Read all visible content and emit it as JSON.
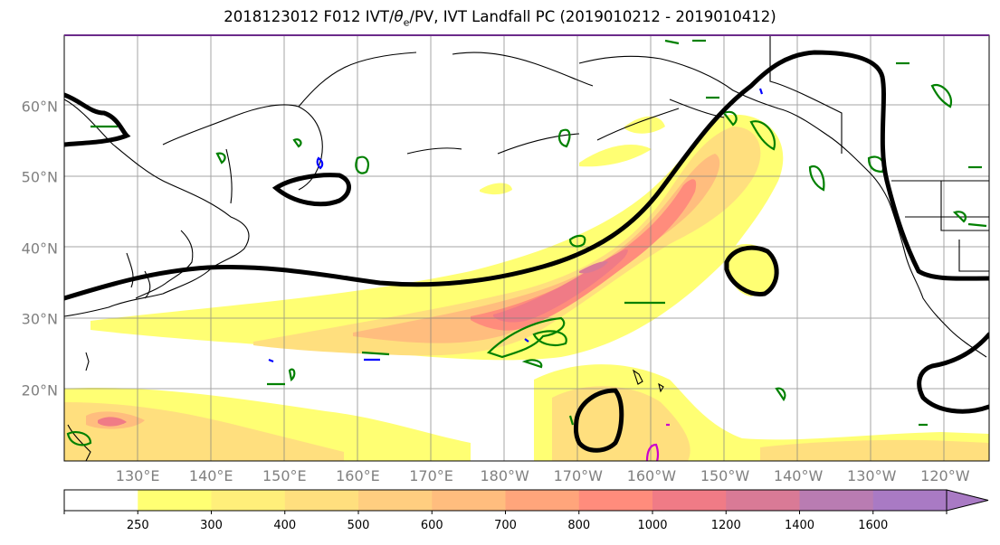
{
  "title_main": "2018123012 F012 IVT/",
  "title_sym": "θ",
  "title_sub": "e",
  "title_rest": "/PV, IVT Landfall PC (2019010212 - 2019010412)",
  "lat_labels": [
    "60°N",
    "50°N",
    "40°N",
    "30°N",
    "20°N"
  ],
  "lat_values": [
    60,
    50,
    40,
    30,
    20
  ],
  "lon_labels": [
    "130°E",
    "140°E",
    "150°E",
    "160°E",
    "170°E",
    "180°W",
    "170°W",
    "160°W",
    "150°W",
    "140°W",
    "130°W",
    "120°W"
  ],
  "lon_values": [
    130,
    140,
    150,
    160,
    170,
    180,
    190,
    200,
    210,
    220,
    230,
    240
  ],
  "map_extent": {
    "lon": [
      120,
      246
    ],
    "lat": [
      10,
      70
    ]
  },
  "colorbar": {
    "levels": [
      "250",
      "300",
      "400",
      "500",
      "600",
      "700",
      "800",
      "1000",
      "1200",
      "1400",
      "1600"
    ],
    "colors": [
      "#ffffff",
      "#ffff73",
      "#ffef7a",
      "#ffdf7e",
      "#ffce80",
      "#ffbd7e",
      "#ffa57b",
      "#ff8c7c",
      "#f07b86",
      "#d97a96",
      "#b97cb2",
      "#a97ac4"
    ],
    "extend": "max"
  },
  "colors": {
    "theta_contour": "#000000",
    "pv_contour": "#008000",
    "blue_contour": "#0000ff",
    "magenta_contour": "#cc00cc",
    "coast": "#000000",
    "grid": "#808080"
  }
}
